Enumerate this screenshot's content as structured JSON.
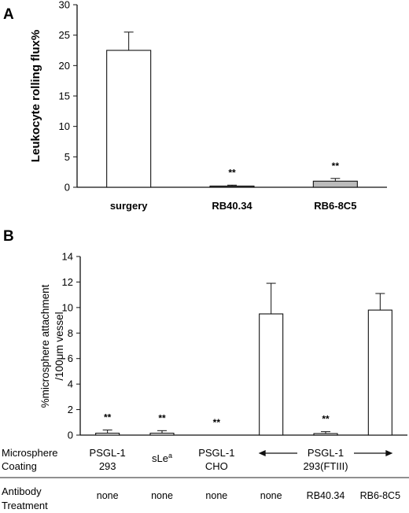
{
  "chart_data": [
    {
      "panel": "A",
      "type": "bar",
      "ylabel": "Leukocyte rolling flux%",
      "ylim": [
        0,
        30
      ],
      "yticks": [
        0,
        5,
        10,
        15,
        20,
        25,
        30
      ],
      "categories": [
        "surgery",
        "RB40.34",
        "RB6-8C5"
      ],
      "values": [
        22.5,
        0.2,
        1.0
      ],
      "errors": [
        3.0,
        0.15,
        0.45
      ],
      "fills": [
        "#ffffff",
        "#555555",
        "#bbbbbb"
      ],
      "significance": [
        "",
        "**",
        "**"
      ],
      "grid": false
    },
    {
      "panel": "B",
      "type": "bar",
      "ylabel": [
        "%microsphere attachment",
        "/100μm vessel"
      ],
      "ylim": [
        0,
        14
      ],
      "yticks": [
        0,
        2,
        4,
        6,
        8,
        10,
        12,
        14
      ],
      "row_labels": {
        "coating": [
          "Microsphere",
          "Coating"
        ],
        "treatment": [
          "Antibody",
          "Treatment"
        ]
      },
      "coatings": [
        {
          "lines": [
            "PSGL-1",
            "293"
          ]
        },
        {
          "base": "sLe",
          "sup": "a"
        },
        {
          "lines": [
            "PSGL-1",
            "CHO"
          ]
        },
        {
          "lines": [
            "PSGL-1",
            "293(FTIII)"
          ],
          "span": true
        }
      ],
      "treatments": [
        "none",
        "none",
        "none",
        "none",
        "RB40.34",
        "RB6-8C5"
      ],
      "values": [
        0.15,
        0.15,
        0.0,
        9.5,
        0.12,
        9.8
      ],
      "errors": [
        0.25,
        0.2,
        0.0,
        2.4,
        0.15,
        1.3
      ],
      "fills": [
        "#ffffff",
        "#ffffff",
        "#ffffff",
        "#ffffff",
        "#ffffff",
        "#ffffff"
      ],
      "significance": [
        "**",
        "**",
        "**",
        "",
        "**",
        ""
      ],
      "grid": false
    }
  ]
}
